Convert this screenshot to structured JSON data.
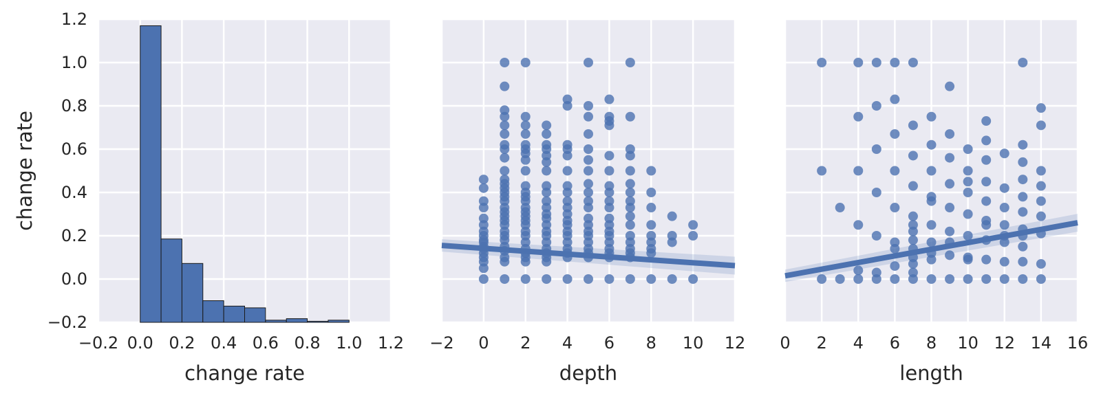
{
  "chart_data": [
    {
      "type": "bar",
      "subtype": "histogram",
      "xlabel": "change rate",
      "ylabel": "change rate",
      "xlim": [
        -0.2,
        1.2
      ],
      "ylim": [
        -0.2,
        1.2
      ],
      "xticks": [
        "−0.2",
        "0.0",
        "0.2",
        "0.4",
        "0.6",
        "0.8",
        "1.0",
        "1.2"
      ],
      "yticks": [
        "−0.2",
        "0.0",
        "0.2",
        "0.4",
        "0.6",
        "0.8",
        "1.0",
        "1.2"
      ],
      "grid": true,
      "bar_color": "#4c72b0",
      "bins": [
        {
          "start": 0.0,
          "end": 0.1,
          "value": 1.17
        },
        {
          "start": 0.1,
          "end": 0.2,
          "value": 0.185
        },
        {
          "start": 0.2,
          "end": 0.3,
          "value": 0.072
        },
        {
          "start": 0.3,
          "end": 0.4,
          "value": -0.1
        },
        {
          "start": 0.4,
          "end": 0.5,
          "value": -0.125
        },
        {
          "start": 0.5,
          "end": 0.6,
          "value": -0.133
        },
        {
          "start": 0.6,
          "end": 0.7,
          "value": -0.19
        },
        {
          "start": 0.7,
          "end": 0.8,
          "value": -0.183
        },
        {
          "start": 0.8,
          "end": 0.9,
          "value": -0.195
        },
        {
          "start": 0.9,
          "end": 1.0,
          "value": -0.19
        }
      ]
    },
    {
      "type": "scatter",
      "xlabel": "depth",
      "ylabel": "",
      "xlim": [
        -2,
        12
      ],
      "ylim": [
        -0.2,
        1.2
      ],
      "xticks": [
        "−2",
        "0",
        "2",
        "4",
        "6",
        "8",
        "10",
        "12"
      ],
      "grid": true,
      "color": "#4c72b0",
      "points": [
        [
          0,
          0
        ],
        [
          0,
          0.05
        ],
        [
          0,
          0.08
        ],
        [
          0,
          0.1
        ],
        [
          0,
          0.12
        ],
        [
          0,
          0.14
        ],
        [
          0,
          0.15
        ],
        [
          0,
          0.17
        ],
        [
          0,
          0.18
        ],
        [
          0,
          0.2
        ],
        [
          0,
          0.22
        ],
        [
          0,
          0.25
        ],
        [
          0,
          0.28
        ],
        [
          0,
          0.33
        ],
        [
          0,
          0.36
        ],
        [
          0,
          0.42
        ],
        [
          0,
          0.46
        ],
        [
          1,
          0
        ],
        [
          1,
          0.08
        ],
        [
          1,
          0.1
        ],
        [
          1,
          0.13
        ],
        [
          1,
          0.15
        ],
        [
          1,
          0.18
        ],
        [
          1,
          0.2
        ],
        [
          1,
          0.22
        ],
        [
          1,
          0.25
        ],
        [
          1,
          0.27
        ],
        [
          1,
          0.29
        ],
        [
          1,
          0.31
        ],
        [
          1,
          0.33
        ],
        [
          1,
          0.36
        ],
        [
          1,
          0.38
        ],
        [
          1,
          0.4
        ],
        [
          1,
          0.42
        ],
        [
          1,
          0.44
        ],
        [
          1,
          0.46
        ],
        [
          1,
          0.5
        ],
        [
          1,
          0.56
        ],
        [
          1,
          0.6
        ],
        [
          1,
          0.62
        ],
        [
          1,
          0.67
        ],
        [
          1,
          0.71
        ],
        [
          1,
          0.75
        ],
        [
          1,
          0.78
        ],
        [
          1,
          0.89
        ],
        [
          1,
          1.0
        ],
        [
          2,
          0
        ],
        [
          2,
          0.08
        ],
        [
          2,
          0.1
        ],
        [
          2,
          0.12
        ],
        [
          2,
          0.14
        ],
        [
          2,
          0.17
        ],
        [
          2,
          0.2
        ],
        [
          2,
          0.22
        ],
        [
          2,
          0.25
        ],
        [
          2,
          0.27
        ],
        [
          2,
          0.29
        ],
        [
          2,
          0.31
        ],
        [
          2,
          0.33
        ],
        [
          2,
          0.36
        ],
        [
          2,
          0.38
        ],
        [
          2,
          0.4
        ],
        [
          2,
          0.43
        ],
        [
          2,
          0.5
        ],
        [
          2,
          0.55
        ],
        [
          2,
          0.58
        ],
        [
          2,
          0.6
        ],
        [
          2,
          0.62
        ],
        [
          2,
          0.67
        ],
        [
          2,
          0.71
        ],
        [
          2,
          0.75
        ],
        [
          2,
          1.0
        ],
        [
          3,
          0
        ],
        [
          3,
          0.08
        ],
        [
          3,
          0.1
        ],
        [
          3,
          0.12
        ],
        [
          3,
          0.14
        ],
        [
          3,
          0.17
        ],
        [
          3,
          0.2
        ],
        [
          3,
          0.22
        ],
        [
          3,
          0.25
        ],
        [
          3,
          0.28
        ],
        [
          3,
          0.3
        ],
        [
          3,
          0.33
        ],
        [
          3,
          0.36
        ],
        [
          3,
          0.4
        ],
        [
          3,
          0.43
        ],
        [
          3,
          0.5
        ],
        [
          3,
          0.54
        ],
        [
          3,
          0.57
        ],
        [
          3,
          0.6
        ],
        [
          3,
          0.62
        ],
        [
          3,
          0.67
        ],
        [
          3,
          0.71
        ],
        [
          4,
          0
        ],
        [
          4,
          0.1
        ],
        [
          4,
          0.12
        ],
        [
          4,
          0.14
        ],
        [
          4,
          0.17
        ],
        [
          4,
          0.2
        ],
        [
          4,
          0.22
        ],
        [
          4,
          0.25
        ],
        [
          4,
          0.27
        ],
        [
          4,
          0.3
        ],
        [
          4,
          0.33
        ],
        [
          4,
          0.36
        ],
        [
          4,
          0.4
        ],
        [
          4,
          0.43
        ],
        [
          4,
          0.5
        ],
        [
          4,
          0.57
        ],
        [
          4,
          0.6
        ],
        [
          4,
          0.62
        ],
        [
          4,
          0.8
        ],
        [
          4,
          0.83
        ],
        [
          5,
          0
        ],
        [
          5,
          0.1
        ],
        [
          5,
          0.12
        ],
        [
          5,
          0.14
        ],
        [
          5,
          0.17
        ],
        [
          5,
          0.2
        ],
        [
          5,
          0.22
        ],
        [
          5,
          0.25
        ],
        [
          5,
          0.28
        ],
        [
          5,
          0.33
        ],
        [
          5,
          0.36
        ],
        [
          5,
          0.4
        ],
        [
          5,
          0.44
        ],
        [
          5,
          0.5
        ],
        [
          5,
          0.55
        ],
        [
          5,
          0.6
        ],
        [
          5,
          0.67
        ],
        [
          5,
          0.75
        ],
        [
          5,
          0.8
        ],
        [
          5,
          1.0
        ],
        [
          6,
          0
        ],
        [
          6,
          0.1
        ],
        [
          6,
          0.12
        ],
        [
          6,
          0.14
        ],
        [
          6,
          0.17
        ],
        [
          6,
          0.2
        ],
        [
          6,
          0.22
        ],
        [
          6,
          0.25
        ],
        [
          6,
          0.28
        ],
        [
          6,
          0.33
        ],
        [
          6,
          0.36
        ],
        [
          6,
          0.4
        ],
        [
          6,
          0.43
        ],
        [
          6,
          0.5
        ],
        [
          6,
          0.57
        ],
        [
          6,
          0.71
        ],
        [
          6,
          0.73
        ],
        [
          6,
          0.75
        ],
        [
          6,
          0.83
        ],
        [
          7,
          0
        ],
        [
          7,
          0.1
        ],
        [
          7,
          0.12
        ],
        [
          7,
          0.14
        ],
        [
          7,
          0.17
        ],
        [
          7,
          0.2
        ],
        [
          7,
          0.25
        ],
        [
          7,
          0.29
        ],
        [
          7,
          0.33
        ],
        [
          7,
          0.36
        ],
        [
          7,
          0.4
        ],
        [
          7,
          0.44
        ],
        [
          7,
          0.5
        ],
        [
          7,
          0.57
        ],
        [
          7,
          0.6
        ],
        [
          7,
          0.75
        ],
        [
          7,
          1.0
        ],
        [
          8,
          0
        ],
        [
          8,
          0.12
        ],
        [
          8,
          0.14
        ],
        [
          8,
          0.17
        ],
        [
          8,
          0.2
        ],
        [
          8,
          0.25
        ],
        [
          8,
          0.33
        ],
        [
          8,
          0.4
        ],
        [
          8,
          0.5
        ],
        [
          9,
          0
        ],
        [
          9,
          0.17
        ],
        [
          9,
          0.2
        ],
        [
          9,
          0.29
        ],
        [
          10,
          0
        ],
        [
          10,
          0.2
        ],
        [
          10,
          0.25
        ]
      ],
      "regression": {
        "x": [
          -2,
          12
        ],
        "y": [
          0.155,
          0.062
        ]
      }
    },
    {
      "type": "scatter",
      "xlabel": "length",
      "ylabel": "",
      "xlim": [
        0,
        16
      ],
      "ylim": [
        -0.2,
        1.2
      ],
      "xticks": [
        "0",
        "2",
        "4",
        "6",
        "8",
        "10",
        "12",
        "14",
        "16"
      ],
      "grid": true,
      "color": "#4c72b0",
      "points": [
        [
          2,
          0
        ],
        [
          2,
          0.5
        ],
        [
          2,
          1.0
        ],
        [
          3,
          0
        ],
        [
          3,
          0.33
        ],
        [
          4,
          0
        ],
        [
          4,
          0.04
        ],
        [
          4,
          0.25
        ],
        [
          4,
          0.5
        ],
        [
          4,
          0.75
        ],
        [
          4,
          1.0
        ],
        [
          5,
          0
        ],
        [
          5,
          0.03
        ],
        [
          5,
          0.2
        ],
        [
          5,
          0.4
        ],
        [
          5,
          0.6
        ],
        [
          5,
          0.8
        ],
        [
          5,
          1.0
        ],
        [
          6,
          0
        ],
        [
          6,
          0.06
        ],
        [
          6,
          0.14
        ],
        [
          6,
          0.17
        ],
        [
          6,
          0.33
        ],
        [
          6,
          0.5
        ],
        [
          6,
          0.67
        ],
        [
          6,
          0.83
        ],
        [
          6,
          1.0
        ],
        [
          7,
          0
        ],
        [
          7,
          0.03
        ],
        [
          7,
          0.07
        ],
        [
          7,
          0.1
        ],
        [
          7,
          0.14
        ],
        [
          7,
          0.18
        ],
        [
          7,
          0.22
        ],
        [
          7,
          0.25
        ],
        [
          7,
          0.29
        ],
        [
          7,
          0.43
        ],
        [
          7,
          0.57
        ],
        [
          7,
          0.71
        ],
        [
          7,
          1.0
        ],
        [
          8,
          0
        ],
        [
          8,
          0.09
        ],
        [
          8,
          0.12
        ],
        [
          8,
          0.17
        ],
        [
          8,
          0.25
        ],
        [
          8,
          0.36
        ],
        [
          8,
          0.38
        ],
        [
          8,
          0.5
        ],
        [
          8,
          0.62
        ],
        [
          8,
          0.75
        ],
        [
          9,
          0
        ],
        [
          9,
          0.11
        ],
        [
          9,
          0.17
        ],
        [
          9,
          0.22
        ],
        [
          9,
          0.33
        ],
        [
          9,
          0.44
        ],
        [
          9,
          0.56
        ],
        [
          9,
          0.67
        ],
        [
          9,
          0.89
        ],
        [
          10,
          0
        ],
        [
          10,
          0.09
        ],
        [
          10,
          0.1
        ],
        [
          10,
          0.2
        ],
        [
          10,
          0.3
        ],
        [
          10,
          0.4
        ],
        [
          10,
          0.45
        ],
        [
          10,
          0.5
        ],
        [
          10,
          0.6
        ],
        [
          11,
          0
        ],
        [
          11,
          0.09
        ],
        [
          11,
          0.18
        ],
        [
          11,
          0.25
        ],
        [
          11,
          0.27
        ],
        [
          11,
          0.36
        ],
        [
          11,
          0.45
        ],
        [
          11,
          0.55
        ],
        [
          11,
          0.64
        ],
        [
          11,
          0.73
        ],
        [
          12,
          0
        ],
        [
          12,
          0.08
        ],
        [
          12,
          0.17
        ],
        [
          12,
          0.2
        ],
        [
          12,
          0.25
        ],
        [
          12,
          0.33
        ],
        [
          12,
          0.42
        ],
        [
          12,
          0.58
        ],
        [
          13,
          0
        ],
        [
          13,
          0.08
        ],
        [
          13,
          0.15
        ],
        [
          13,
          0.2
        ],
        [
          13,
          0.23
        ],
        [
          13,
          0.31
        ],
        [
          13,
          0.38
        ],
        [
          13,
          0.46
        ],
        [
          13,
          0.54
        ],
        [
          13,
          0.62
        ],
        [
          13,
          1.0
        ],
        [
          14,
          0
        ],
        [
          14,
          0.07
        ],
        [
          14,
          0.21
        ],
        [
          14,
          0.29
        ],
        [
          14,
          0.36
        ],
        [
          14,
          0.43
        ],
        [
          14,
          0.5
        ],
        [
          14,
          0.71
        ],
        [
          14,
          0.79
        ]
      ],
      "regression": {
        "x": [
          0,
          16
        ],
        "y": [
          0.015,
          0.26
        ]
      }
    }
  ]
}
